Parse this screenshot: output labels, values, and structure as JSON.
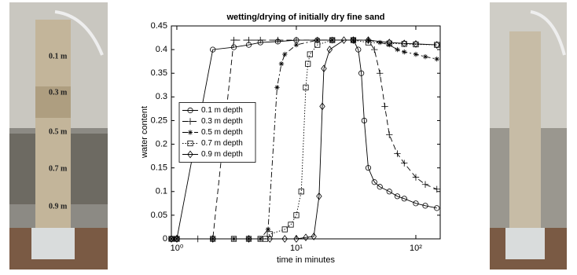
{
  "photo_labels": [
    "0.1 m",
    "0.3 m",
    "0.5 m",
    "0.7 m",
    "0.9 m"
  ],
  "chart_data": {
    "type": "line",
    "title": "wetting/drying of initially dry fine sand",
    "xlabel": "time in minutes",
    "ylabel": "water content",
    "xscale": "log",
    "xlim": [
      0.9,
      160
    ],
    "xticks": [
      {
        "value": 1,
        "label": "10⁰"
      },
      {
        "value": 10,
        "label": "10¹"
      },
      {
        "value": 100,
        "label": "10²"
      }
    ],
    "ylim": [
      0,
      0.45
    ],
    "yticks": [
      0,
      0.05,
      0.1,
      0.15,
      0.2,
      0.25,
      0.3,
      0.35,
      0.4,
      0.45
    ],
    "grid": false,
    "legend": "center left",
    "series": [
      {
        "name": "0.1 m depth",
        "color": "#000000",
        "marker": "circle",
        "dash": "solid",
        "x": [
          0.9,
          1,
          2,
          3,
          4,
          5,
          7,
          10,
          15,
          20,
          30,
          33,
          35,
          37,
          40,
          45,
          50,
          60,
          70,
          80,
          100,
          120,
          150
        ],
        "values": [
          0,
          0,
          0.4,
          0.405,
          0.41,
          0.415,
          0.417,
          0.42,
          0.42,
          0.42,
          0.42,
          0.4,
          0.35,
          0.25,
          0.15,
          0.12,
          0.11,
          0.1,
          0.09,
          0.085,
          0.075,
          0.07,
          0.065
        ]
      },
      {
        "name": "0.3 m depth",
        "color": "#000000",
        "marker": "plus",
        "dash": "dashed",
        "x": [
          0.9,
          1,
          1.5,
          2,
          3,
          4,
          5,
          7,
          10,
          15,
          20,
          30,
          40,
          45,
          50,
          55,
          60,
          70,
          80,
          100,
          120,
          150
        ],
        "values": [
          0,
          0,
          0,
          0,
          0.42,
          0.42,
          0.42,
          0.42,
          0.42,
          0.42,
          0.42,
          0.42,
          0.42,
          0.4,
          0.35,
          0.28,
          0.22,
          0.18,
          0.16,
          0.13,
          0.115,
          0.105
        ]
      },
      {
        "name": "0.5 m depth",
        "color": "#000000",
        "marker": "asterisk",
        "dash": "dashdot",
        "x": [
          0.9,
          1,
          2,
          3,
          4,
          5,
          5.8,
          6.9,
          7.5,
          8,
          10,
          15,
          20,
          30,
          40,
          50,
          60,
          70,
          80,
          100,
          120,
          150
        ],
        "values": [
          0,
          0,
          0,
          0,
          0,
          0,
          0.02,
          0.32,
          0.37,
          0.39,
          0.41,
          0.42,
          0.42,
          0.42,
          0.42,
          0.415,
          0.41,
          0.4,
          0.395,
          0.39,
          0.385,
          0.38
        ]
      },
      {
        "name": "0.7 m depth",
        "color": "#000000",
        "marker": "square",
        "dash": "dotted",
        "x": [
          0.9,
          1,
          2,
          3,
          4,
          5,
          5.5,
          6,
          8,
          9,
          10,
          11,
          12,
          12.5,
          13,
          15,
          20,
          30,
          40,
          60,
          80,
          100,
          150
        ],
        "values": [
          0,
          0,
          0,
          0,
          0,
          0,
          0,
          0.01,
          0.02,
          0.03,
          0.05,
          0.1,
          0.32,
          0.37,
          0.39,
          0.41,
          0.42,
          0.42,
          0.415,
          0.413,
          0.412,
          0.411,
          0.41
        ]
      },
      {
        "name": "0.9 m depth",
        "color": "#000000",
        "marker": "diamond",
        "dash": "solid",
        "x": [
          0.9,
          1,
          2,
          4,
          6,
          8,
          10,
          12,
          14,
          15.5,
          16.5,
          17,
          19,
          25,
          30,
          40,
          60,
          80,
          100,
          150
        ],
        "values": [
          0,
          0,
          0,
          0,
          0,
          0,
          0,
          0.003,
          0.005,
          0.09,
          0.28,
          0.36,
          0.4,
          0.42,
          0.42,
          0.42,
          0.415,
          0.413,
          0.412,
          0.41
        ]
      }
    ]
  }
}
